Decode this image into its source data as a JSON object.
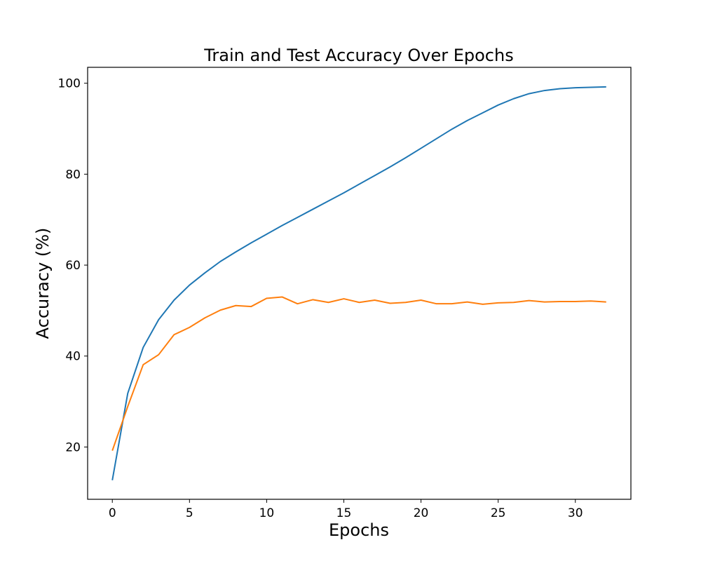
{
  "chart_data": {
    "type": "line",
    "title": "Train and Test Accuracy Over Epochs",
    "xlabel": "Epochs",
    "ylabel": "Accuracy (%)",
    "xlim": [
      -1.6,
      33.6
    ],
    "ylim": [
      8.5,
      103.5
    ],
    "xticks": [
      0,
      5,
      10,
      15,
      20,
      25,
      30
    ],
    "yticks": [
      20,
      40,
      60,
      80,
      100
    ],
    "grid": false,
    "x": [
      0,
      1,
      2,
      3,
      4,
      5,
      6,
      7,
      8,
      9,
      10,
      11,
      12,
      13,
      14,
      15,
      16,
      17,
      18,
      19,
      20,
      21,
      22,
      23,
      24,
      25,
      26,
      27,
      28,
      29,
      30,
      31,
      32
    ],
    "series": [
      {
        "color": "#1f77b4",
        "values": [
          12.7,
          31.8,
          41.9,
          48.0,
          52.3,
          55.6,
          58.3,
          60.8,
          62.9,
          64.9,
          66.8,
          68.7,
          70.5,
          72.3,
          74.1,
          75.9,
          77.8,
          79.7,
          81.6,
          83.6,
          85.7,
          87.8,
          89.9,
          91.8,
          93.5,
          95.2,
          96.6,
          97.7,
          98.4,
          98.8,
          99.0,
          99.1,
          99.2
        ]
      },
      {
        "color": "#ff7f0e",
        "values": [
          19.2,
          28.9,
          38.1,
          40.3,
          44.7,
          46.3,
          48.4,
          50.1,
          51.1,
          50.9,
          52.7,
          53.0,
          51.5,
          52.4,
          51.8,
          52.6,
          51.8,
          52.3,
          51.6,
          51.8,
          52.3,
          51.5,
          51.5,
          51.9,
          51.4,
          51.7,
          51.8,
          52.2,
          51.9,
          52.0,
          52.0,
          52.1,
          51.9
        ]
      }
    ]
  }
}
